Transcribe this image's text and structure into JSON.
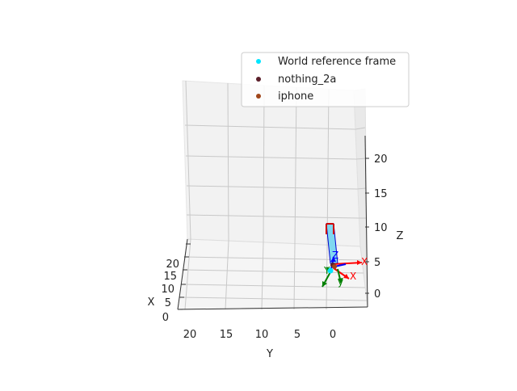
{
  "chart_data": {
    "type": "scatter",
    "projection": "3d",
    "title": "",
    "xlabel": "X",
    "ylabel": "Y",
    "zlabel": "Z",
    "x_ticks": [
      "0",
      "5",
      "10",
      "15",
      "20"
    ],
    "y_ticks": [
      "20",
      "15",
      "10",
      "5",
      "0"
    ],
    "z_ticks": [
      "0",
      "5",
      "10",
      "15",
      "20"
    ],
    "grid": true,
    "legend_position": "top-right",
    "legend": [
      {
        "label": "World reference frame",
        "color": "#00e5ff"
      },
      {
        "label": "nothing_2a",
        "color": "#5b1f2a"
      },
      {
        "label": "iphone",
        "color": "#a0461a"
      }
    ],
    "frame_axis_labels": [
      "Z",
      "X",
      "X",
      "Y",
      "y"
    ],
    "frame_axis_colors": {
      "x": "#ff0000",
      "y": "#008000",
      "z": "#0000ff"
    }
  }
}
